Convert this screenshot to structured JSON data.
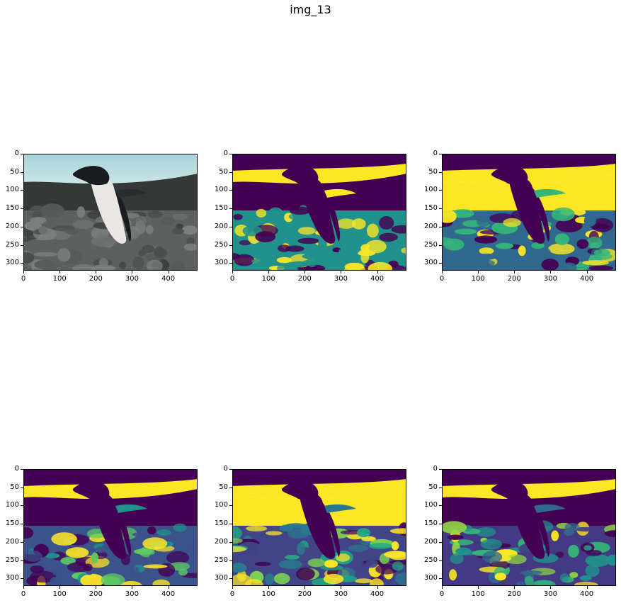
{
  "figure": {
    "title": "img_13"
  },
  "axes": {
    "yticks": [
      "0",
      "50",
      "100",
      "150",
      "200",
      "250",
      "300"
    ],
    "xticks": [
      "0",
      "100",
      "200",
      "300",
      "400"
    ],
    "ytick_values": [
      0,
      50,
      100,
      150,
      200,
      250,
      300
    ],
    "xtick_values": [
      0,
      100,
      200,
      300,
      400
    ],
    "y_range": [
      0,
      321
    ],
    "x_range": [
      0,
      481
    ]
  },
  "panels": [
    {
      "kind": "original-photo",
      "description_icon": "penguin-photo-icon"
    },
    {
      "kind": "segmentation-k3",
      "palette": [
        "#440154",
        "#21918c",
        "#fde725"
      ]
    },
    {
      "kind": "segmentation-k4",
      "palette": [
        "#440154",
        "#31688e",
        "#35b779",
        "#fde725"
      ]
    },
    {
      "kind": "segmentation-k5",
      "palette": [
        "#440154",
        "#3b528b",
        "#21918c",
        "#5ec962",
        "#fde725"
      ]
    },
    {
      "kind": "segmentation-k6",
      "palette": [
        "#440154",
        "#414487",
        "#2a788e",
        "#22a884",
        "#7ad151",
        "#fde725"
      ]
    },
    {
      "kind": "segmentation-k7",
      "palette": [
        "#440154",
        "#443983",
        "#31688e",
        "#21918c",
        "#35b779",
        "#90d743",
        "#fde725"
      ]
    }
  ],
  "colors": {
    "sky": "#c9e4e6",
    "rocks": "#5c615f",
    "penguin_white": "#e9e6e4",
    "penguin_black": "#1a1c1f"
  }
}
